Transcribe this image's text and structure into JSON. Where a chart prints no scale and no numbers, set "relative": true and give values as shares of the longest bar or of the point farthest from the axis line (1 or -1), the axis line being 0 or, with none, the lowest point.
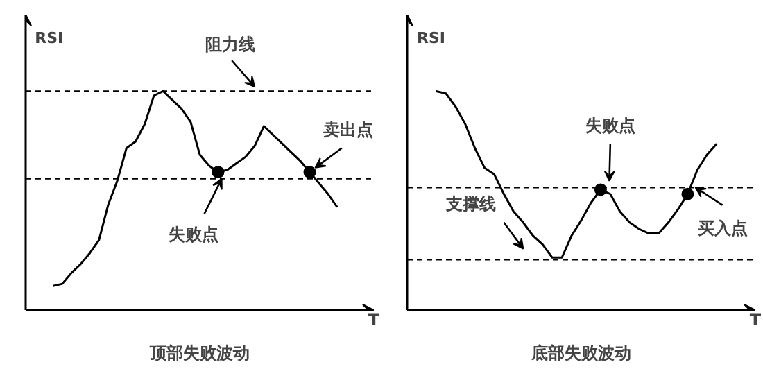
{
  "chart_data": [
    {
      "type": "line",
      "relative": true,
      "title": "顶部失败波动",
      "xlabel": "T",
      "ylabel": "RSI",
      "categories": [
        null,
        null,
        null,
        null,
        null,
        null,
        null,
        null,
        null,
        null,
        null,
        null,
        null,
        null,
        null,
        null,
        null,
        null,
        null,
        null,
        null,
        null,
        null,
        null,
        null,
        null,
        null,
        null,
        null,
        null,
        null,
        null
      ],
      "series": [
        {
          "color": "#000000",
          "values": [
            0.11,
            0.12,
            0.17,
            0.21,
            0.26,
            0.32,
            0.48,
            0.59,
            0.74,
            0.77,
            0.85,
            0.98,
            1.0,
            0.96,
            0.92,
            0.86,
            0.71,
            0.66,
            0.63,
            0.64,
            0.67,
            0.7,
            0.75,
            0.84,
            0.8,
            0.76,
            0.72,
            0.68,
            0.63,
            0.58,
            0.53,
            0.47
          ]
        }
      ],
      "ref_lines": [
        {
          "axis": "y",
          "value": 1.0,
          "line_style": "dashed"
        },
        {
          "axis": "y",
          "value": 0.6,
          "line_style": "dashed"
        }
      ],
      "annotations": [
        "阻力线",
        "卖出点",
        "失败点"
      ]
    },
    {
      "type": "line",
      "relative": true,
      "title": "底部失败波动",
      "xlabel": "T",
      "ylabel": "RSI",
      "categories": [
        null,
        null,
        null,
        null,
        null,
        null,
        null,
        null,
        null,
        null,
        null,
        null,
        null,
        null,
        null,
        null,
        null,
        null,
        null,
        null,
        null,
        null,
        null,
        null,
        null,
        null,
        null,
        null,
        null,
        null
      ],
      "series": [
        {
          "color": "#000000",
          "values": [
            1.0,
            0.99,
            0.93,
            0.85,
            0.74,
            0.65,
            0.62,
            0.53,
            0.45,
            0.4,
            0.34,
            0.3,
            0.24,
            0.24,
            0.34,
            0.41,
            0.49,
            0.55,
            0.53,
            0.45,
            0.4,
            0.37,
            0.35,
            0.35,
            0.4,
            0.46,
            0.53,
            0.64,
            0.71,
            0.76
          ]
        }
      ],
      "ref_lines": [
        {
          "axis": "y",
          "value": 0.56,
          "line_style": "dashed"
        },
        {
          "axis": "y",
          "value": 0.23,
          "line_style": "dashed"
        }
      ],
      "annotations": [
        "失败点",
        "支撑线",
        "买入点"
      ]
    }
  ]
}
